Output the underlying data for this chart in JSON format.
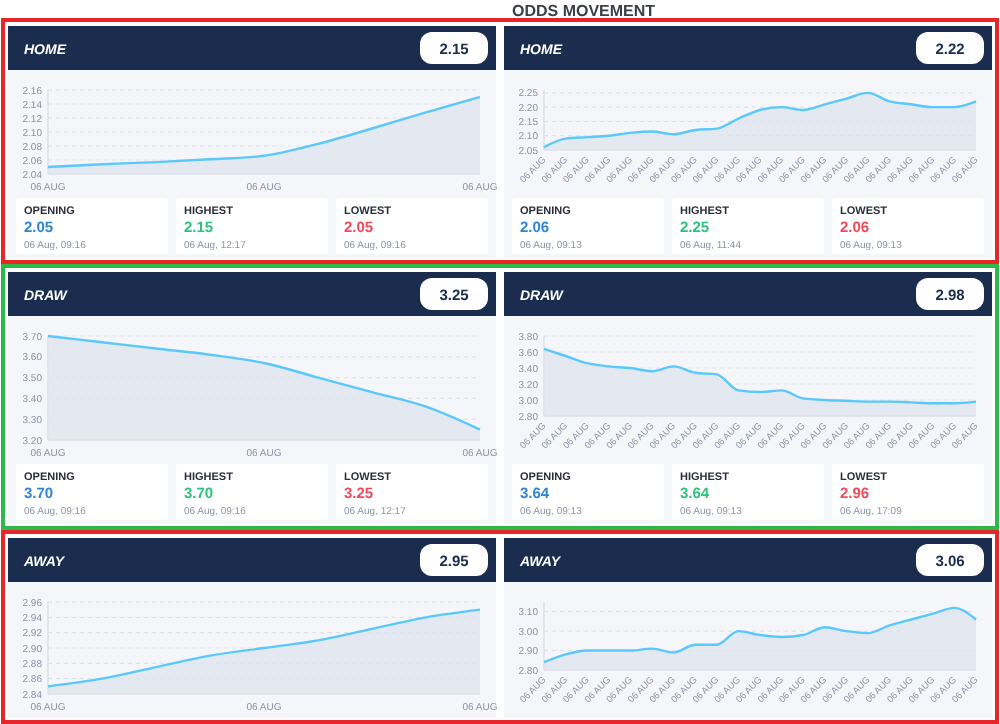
{
  "chart_data": [
    {
      "type": "area",
      "title": "HOME",
      "categories": [
        "06 AUG",
        null,
        null,
        null,
        "06 AUG",
        null,
        null,
        null,
        "06 AUG"
      ],
      "values": [
        2.05,
        2.054,
        2.057,
        2.061,
        2.066,
        2.083,
        2.105,
        2.128,
        2.15
      ],
      "color": "#5ac8fa",
      "ylim": [
        2.04,
        2.16
      ],
      "yticks": [
        {
          "value": 2.04,
          "label": "2.04"
        },
        {
          "value": 2.06,
          "label": "2.06"
        },
        {
          "value": 2.08,
          "label": "2.08"
        },
        {
          "value": 2.1,
          "label": "2.10"
        },
        {
          "value": 2.12,
          "label": "2.12"
        },
        {
          "value": 2.14,
          "label": "2.14"
        },
        {
          "value": 2.16,
          "label": "2.16"
        }
      ],
      "grid": "y",
      "annotations": [
        "2.15",
        "OPENING",
        "2.05",
        "06 Aug, 09:16",
        "HIGHEST",
        "2.15",
        "06 Aug, 12:17",
        "LOWEST",
        "2.05",
        "06 Aug, 09:16"
      ]
    },
    {
      "type": "area",
      "title": "HOME",
      "categories": [
        "06 AUG",
        "06 AUG",
        "06 AUG",
        "06 AUG",
        "06 AUG",
        "06 AUG",
        "06 AUG",
        "06 AUG",
        "06 AUG",
        "06 AUG",
        "06 AUG",
        "06 AUG",
        "06 AUG",
        "06 AUG",
        "06 AUG",
        "06 AUG",
        "06 AUG",
        "06 AUG",
        "06 AUG",
        "06 AUG",
        "06 AUG"
      ],
      "values": [
        2.06,
        2.09,
        2.095,
        2.1,
        2.11,
        2.115,
        2.105,
        2.12,
        2.125,
        2.16,
        2.19,
        2.2,
        2.19,
        2.21,
        2.23,
        2.25,
        2.22,
        2.21,
        2.2,
        2.2,
        2.22
      ],
      "color": "#5ac8fa",
      "ylim": [
        2.05,
        2.26
      ],
      "yticks": [
        {
          "value": 2.05,
          "label": "2.05"
        },
        {
          "value": 2.1,
          "label": "2.10"
        },
        {
          "value": 2.15,
          "label": "2.15"
        },
        {
          "value": 2.2,
          "label": "2.20"
        },
        {
          "value": 2.25,
          "label": "2.25"
        }
      ],
      "grid": "y",
      "annotations": [
        "ODDS MOVEMENT",
        "2.22",
        "OPENING",
        "2.06",
        "06 Aug, 09:13",
        "HIGHEST",
        "2.25",
        "06 Aug, 11:44",
        "LOWEST",
        "2.06",
        "06 Aug, 09:13"
      ]
    },
    {
      "type": "area",
      "title": "DRAW",
      "categories": [
        "06 AUG",
        null,
        null,
        null,
        "06 AUG",
        null,
        null,
        null,
        "06 AUG"
      ],
      "values": [
        3.7,
        3.67,
        3.64,
        3.61,
        3.57,
        3.5,
        3.43,
        3.36,
        3.25
      ],
      "color": "#5ac8fa",
      "ylim": [
        3.2,
        3.7
      ],
      "yticks": [
        {
          "value": 3.2,
          "label": "3.20"
        },
        {
          "value": 3.3,
          "label": "3.30"
        },
        {
          "value": 3.4,
          "label": "3.40"
        },
        {
          "value": 3.5,
          "label": "3.50"
        },
        {
          "value": 3.6,
          "label": "3.60"
        },
        {
          "value": 3.7,
          "label": "3.70"
        }
      ],
      "grid": "y",
      "annotations": [
        "3.25",
        "OPENING",
        "3.70",
        "06 Aug, 09:16",
        "HIGHEST",
        "3.70",
        "06 Aug, 09:16",
        "LOWEST",
        "3.25",
        "06 Aug, 12:17"
      ]
    },
    {
      "type": "area",
      "title": "DRAW",
      "categories": [
        "06 AUG",
        "06 AUG",
        "06 AUG",
        "06 AUG",
        "06 AUG",
        "06 AUG",
        "06 AUG",
        "06 AUG",
        "06 AUG",
        "06 AUG",
        "06 AUG",
        "06 AUG",
        "06 AUG",
        "06 AUG",
        "06 AUG",
        "06 AUG",
        "06 AUG",
        "06 AUG",
        "06 AUG",
        "06 AUG",
        "06 AUG"
      ],
      "values": [
        3.64,
        3.55,
        3.46,
        3.42,
        3.4,
        3.36,
        3.42,
        3.34,
        3.32,
        3.12,
        3.1,
        3.12,
        3.02,
        3.0,
        2.99,
        2.98,
        2.98,
        2.97,
        2.96,
        2.96,
        2.98
      ],
      "color": "#5ac8fa",
      "ylim": [
        2.8,
        3.8
      ],
      "yticks": [
        {
          "value": 2.8,
          "label": "2.80"
        },
        {
          "value": 3.0,
          "label": "3.00"
        },
        {
          "value": 3.2,
          "label": "3.20"
        },
        {
          "value": 3.4,
          "label": "3.40"
        },
        {
          "value": 3.6,
          "label": "3.60"
        },
        {
          "value": 3.8,
          "label": "3.80"
        }
      ],
      "grid": "y",
      "annotations": [
        "2.98",
        "OPENING",
        "3.64",
        "06 Aug, 09:13",
        "HIGHEST",
        "3.64",
        "06 Aug, 09:13",
        "LOWEST",
        "2.96",
        "06 Aug, 17:09"
      ]
    },
    {
      "type": "area",
      "title": "AWAY",
      "categories": [
        "06 AUG",
        null,
        null,
        null,
        "06 AUG",
        null,
        null,
        null,
        "06 AUG"
      ],
      "values": [
        2.85,
        2.86,
        2.875,
        2.89,
        2.9,
        2.91,
        2.925,
        2.94,
        2.95
      ],
      "color": "#5ac8fa",
      "ylim": [
        2.84,
        2.96
      ],
      "yticks": [
        {
          "value": 2.84,
          "label": "2.84"
        },
        {
          "value": 2.86,
          "label": "2.86"
        },
        {
          "value": 2.88,
          "label": "2.88"
        },
        {
          "value": 2.9,
          "label": "2.90"
        },
        {
          "value": 2.92,
          "label": "2.92"
        },
        {
          "value": 2.94,
          "label": "2.94"
        },
        {
          "value": 2.96,
          "label": "2.96"
        }
      ],
      "grid": "y",
      "annotations": [
        "2.95"
      ]
    },
    {
      "type": "area",
      "title": "AWAY",
      "categories": [
        "06 AUG",
        "06 AUG",
        "06 AUG",
        "06 AUG",
        "06 AUG",
        "06 AUG",
        "06 AUG",
        "06 AUG",
        "06 AUG",
        "06 AUG",
        "06 AUG",
        "06 AUG",
        "06 AUG",
        "06 AUG",
        "06 AUG",
        "06 AUG",
        "06 AUG",
        "06 AUG",
        "06 AUG",
        "06 AUG",
        "06 AUG"
      ],
      "values": [
        2.84,
        2.88,
        2.9,
        2.9,
        2.9,
        2.91,
        2.89,
        2.93,
        2.93,
        3.0,
        2.98,
        2.97,
        2.98,
        3.02,
        3.0,
        2.99,
        3.03,
        3.06,
        3.09,
        3.12,
        3.06
      ],
      "color": "#5ac8fa",
      "ylim": [
        2.8,
        3.15
      ],
      "yticks": [
        {
          "value": 2.8,
          "label": "2.80"
        },
        {
          "value": 2.9,
          "label": "2.90"
        },
        {
          "value": 3.0,
          "label": "3.00"
        },
        {
          "value": 3.1,
          "label": "3.10"
        }
      ],
      "grid": "y",
      "annotations": [
        "3.06"
      ]
    }
  ]
}
